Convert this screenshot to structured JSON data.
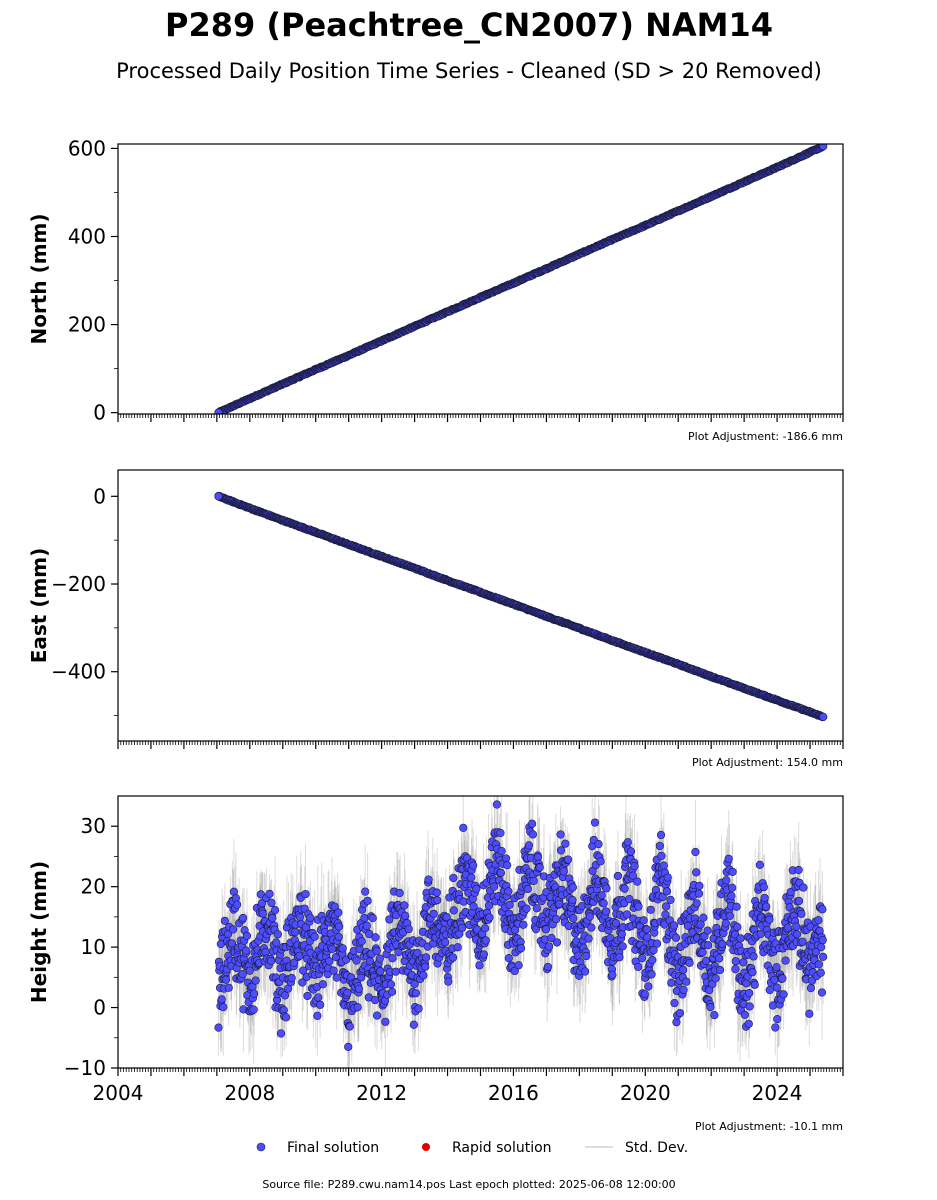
{
  "title": "P289 (Peachtree_CN2007) NAM14",
  "subtitle": "Processed Daily Position Time Series - Cleaned (SD > 20 Removed)",
  "legend": {
    "final": "Final solution",
    "rapid": "Rapid solution",
    "std": "Std. Dev."
  },
  "source_note": "Source file: P289.cwu.nam14.pos  Last epoch plotted: 2025-06-08 12:00:00",
  "colors": {
    "final_fill": "#4d4dff",
    "point_edge": "#1a1a3a",
    "rapid": "#e00000",
    "std": "#808080"
  },
  "chart_data": [
    {
      "type": "scatter",
      "ylabel": "North (mm)",
      "xlim": [
        2004.0,
        2026.0
      ],
      "ylim": [
        -3,
        610
      ],
      "yticks": [
        0,
        200,
        400,
        600
      ],
      "ytick_labels": [
        "0",
        "200",
        "400",
        "600"
      ],
      "adjustment": "Plot Adjustment: -186.6 mm",
      "grid": false,
      "series": [
        {
          "name": "Final solution",
          "x": [
            2007.05,
            2008.0,
            2009.0,
            2010.0,
            2011.0,
            2012.0,
            2013.0,
            2014.0,
            2015.0,
            2016.0,
            2017.0,
            2018.0,
            2019.0,
            2020.0,
            2021.0,
            2022.0,
            2023.0,
            2024.0,
            2025.4
          ],
          "y": [
            0,
            32,
            65,
            98,
            130,
            163,
            196,
            229,
            262,
            294,
            327,
            360,
            393,
            425,
            458,
            491,
            524,
            557,
            605
          ]
        }
      ]
    },
    {
      "type": "scatter",
      "ylabel": "East (mm)",
      "xlim": [
        2004.0,
        2026.0
      ],
      "ylim": [
        -558,
        60
      ],
      "yticks": [
        0,
        -200,
        -400
      ],
      "ytick_labels": [
        "0",
        "−200",
        "−400"
      ],
      "adjustment": "Plot Adjustment: 154.0 mm",
      "grid": false,
      "series": [
        {
          "name": "Final solution",
          "x": [
            2007.05,
            2008.0,
            2009.0,
            2010.0,
            2011.0,
            2012.0,
            2013.0,
            2014.0,
            2015.0,
            2016.0,
            2017.0,
            2018.0,
            2019.0,
            2020.0,
            2021.0,
            2022.0,
            2023.0,
            2024.0,
            2025.4
          ],
          "y": [
            0,
            -27,
            -55,
            -82,
            -110,
            -137,
            -164,
            -192,
            -219,
            -246,
            -274,
            -301,
            -329,
            -356,
            -383,
            -411,
            -438,
            -465,
            -503
          ]
        }
      ]
    },
    {
      "type": "scatter",
      "ylabel": "Height (mm)",
      "xlim": [
        2004.0,
        2026.0
      ],
      "ylim": [
        -10,
        35
      ],
      "yticks": [
        -10,
        0,
        10,
        20,
        30
      ],
      "ytick_labels": [
        "−10",
        "0",
        "10",
        "20",
        "30"
      ],
      "xticks": [
        2004,
        2008,
        2012,
        2016,
        2020,
        2024
      ],
      "xtick_labels": [
        "2004",
        "2008",
        "2012",
        "2016",
        "2020",
        "2024"
      ],
      "adjustment": "Plot Adjustment: -10.1 mm",
      "grid": false,
      "series": [
        {
          "name": "Final solution",
          "x": [
            2007.05,
            2007.5,
            2008.0,
            2008.5,
            2009.0,
            2009.5,
            2010.0,
            2010.5,
            2011.0,
            2011.5,
            2012.0,
            2012.5,
            2013.0,
            2013.5,
            2014.0,
            2014.5,
            2015.0,
            2015.5,
            2016.0,
            2016.5,
            2017.0,
            2017.5,
            2018.0,
            2018.5,
            2019.0,
            2019.5,
            2020.0,
            2020.5,
            2021.0,
            2021.5,
            2022.0,
            2022.5,
            2023.0,
            2023.5,
            2024.0,
            2024.5,
            2025.0,
            2025.4
          ],
          "y": [
            2,
            14,
            4,
            15,
            3,
            14,
            5,
            13,
            0,
            11,
            2,
            14,
            5,
            16,
            9,
            23,
            12,
            26,
            10,
            24,
            13,
            22,
            9,
            23,
            11,
            22,
            6,
            23,
            3,
            18,
            4,
            21,
            1,
            17,
            4,
            18,
            7,
            11
          ]
        }
      ]
    }
  ]
}
